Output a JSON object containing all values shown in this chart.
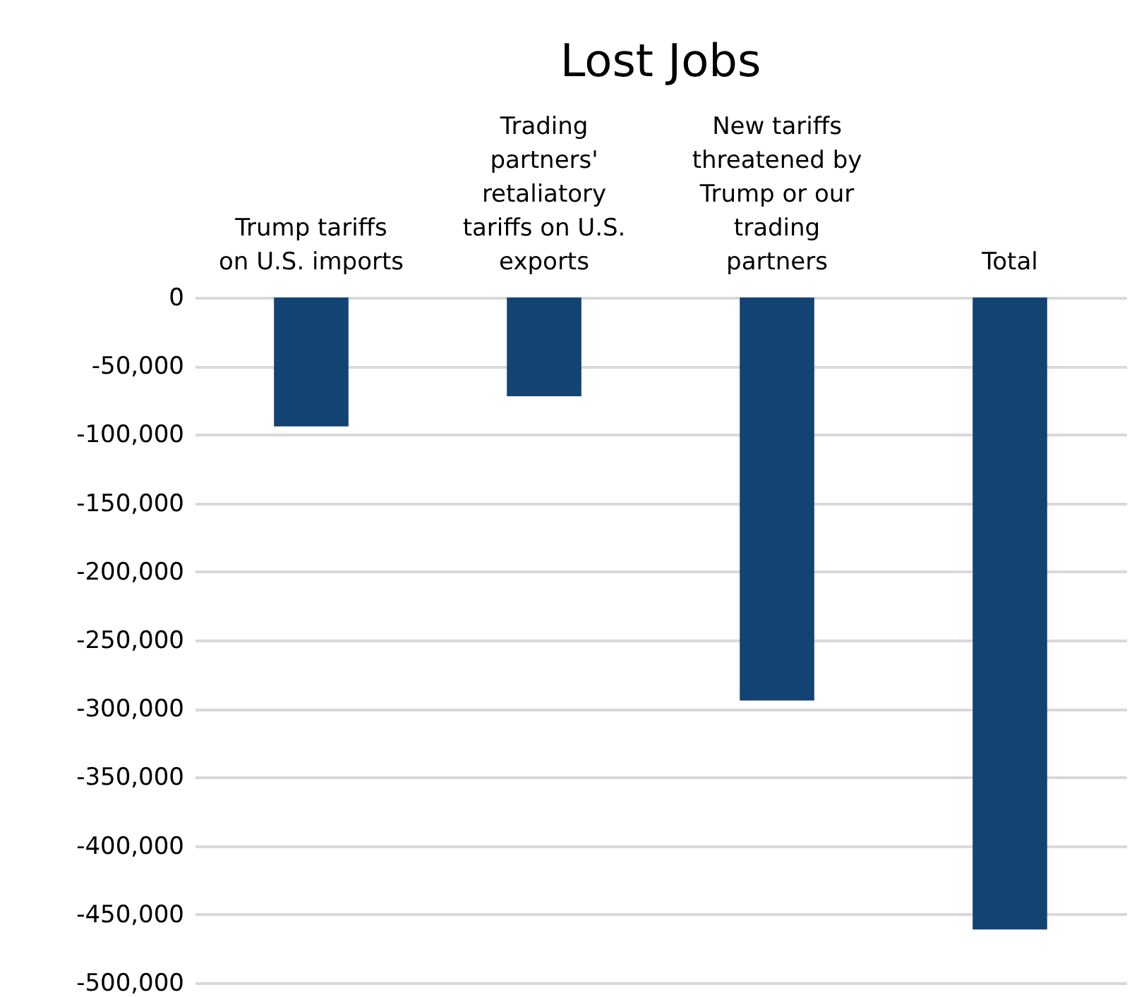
{
  "chart_data": {
    "type": "bar",
    "title": "Lost Jobs",
    "categories": [
      "Trump tariffs on U.S. imports",
      "Trading partners' retaliatory tariffs on U.S. exports",
      "New tariffs threatened by Trump or our trading partners",
      "Total"
    ],
    "values": [
      -94000,
      -72000,
      -294000,
      -461000
    ],
    "color": "#134372",
    "ylim": [
      -500000,
      0
    ],
    "yticks": [
      0,
      {
        "value": -50000,
        "label": "-50,000"
      },
      {
        "value": -100000,
        "label": "-100,000"
      },
      {
        "value": -150000,
        "label": "-150,000"
      },
      {
        "value": -200000,
        "label": "-200,000"
      },
      {
        "value": -250000,
        "label": "-250,000"
      },
      {
        "value": -300000,
        "label": "-300,000"
      },
      {
        "value": -350000,
        "label": "-350,000"
      },
      {
        "value": -400000,
        "label": "-400,000"
      },
      {
        "value": -450000,
        "label": "-450,000"
      },
      {
        "value": -500000,
        "label": "-500,000"
      }
    ],
    "grid": "y"
  }
}
